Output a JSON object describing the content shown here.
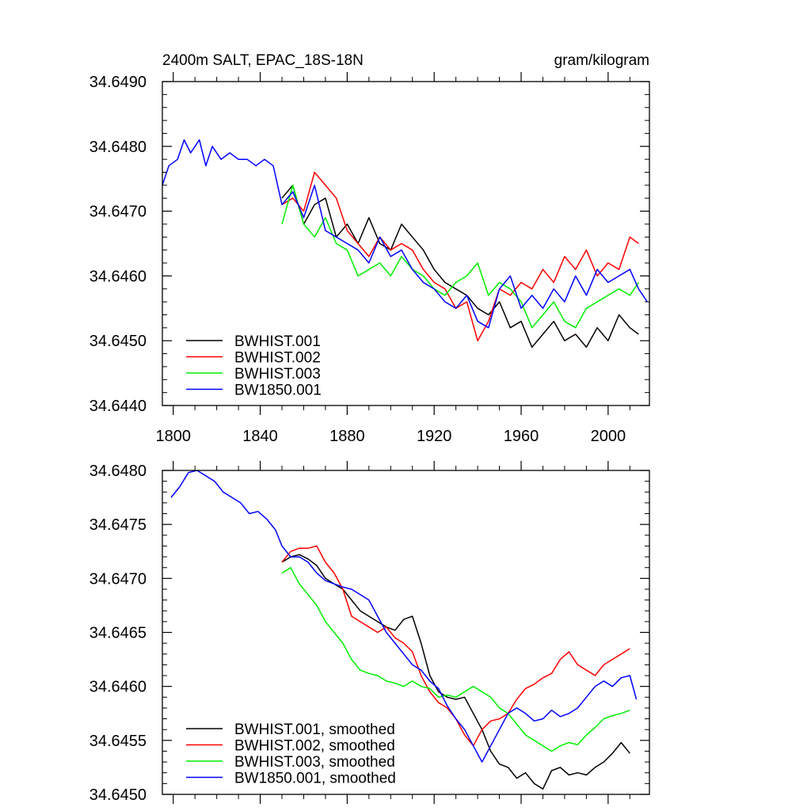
{
  "chart_data": [
    {
      "type": "line",
      "title": "2400m SALT, EPAC_18S-18N",
      "units": "gram/kilogram",
      "xlabel": "",
      "ylabel": "",
      "xlim": [
        1795,
        2019
      ],
      "ylim": [
        34.644,
        34.649
      ],
      "x_ticks": [
        1800,
        1840,
        1880,
        1920,
        1960,
        2000
      ],
      "y_ticks": [
        34.644,
        34.645,
        34.646,
        34.647,
        34.648,
        34.649
      ],
      "y_tick_labels": [
        "34.6440",
        "34.6450",
        "34.6460",
        "34.6470",
        "34.6480",
        "34.6490"
      ],
      "legend_position": "bottom-left",
      "series": [
        {
          "name": "BWHIST.001",
          "color": "#000000",
          "x": [
            1850,
            1855,
            1860,
            1865,
            1870,
            1875,
            1880,
            1885,
            1890,
            1895,
            1900,
            1905,
            1910,
            1915,
            1920,
            1925,
            1930,
            1935,
            1940,
            1945,
            1950,
            1955,
            1960,
            1965,
            1970,
            1975,
            1980,
            1985,
            1990,
            1995,
            2000,
            2005,
            2010,
            2014
          ],
          "y": [
            34.6472,
            34.6474,
            34.6468,
            34.6471,
            34.6472,
            34.6466,
            34.6468,
            34.6465,
            34.6469,
            34.6465,
            34.6464,
            34.6468,
            34.6466,
            34.6464,
            34.6461,
            34.6459,
            34.6458,
            34.6457,
            34.6455,
            34.6454,
            34.6456,
            34.6452,
            34.6453,
            34.6449,
            34.6451,
            34.6453,
            34.645,
            34.6451,
            34.6449,
            34.6452,
            34.645,
            34.6454,
            34.6452,
            34.6451
          ]
        },
        {
          "name": "BWHIST.002",
          "color": "#ff0000",
          "x": [
            1850,
            1855,
            1860,
            1865,
            1870,
            1875,
            1880,
            1885,
            1890,
            1895,
            1900,
            1905,
            1910,
            1915,
            1920,
            1925,
            1930,
            1935,
            1940,
            1945,
            1950,
            1955,
            1960,
            1965,
            1970,
            1975,
            1980,
            1985,
            1990,
            1995,
            2000,
            2005,
            2010,
            2014
          ],
          "y": [
            34.6471,
            34.6472,
            34.647,
            34.6476,
            34.6474,
            34.6472,
            34.6467,
            34.6465,
            34.6463,
            34.6466,
            34.6464,
            34.6465,
            34.6464,
            34.6461,
            34.6459,
            34.6458,
            34.6455,
            34.6456,
            34.645,
            34.6453,
            34.6458,
            34.6457,
            34.6459,
            34.6458,
            34.6461,
            34.6459,
            34.6463,
            34.6461,
            34.6464,
            34.646,
            34.6462,
            34.6461,
            34.6466,
            34.6465
          ]
        },
        {
          "name": "BWHIST.003",
          "color": "#00ee00",
          "x": [
            1850,
            1855,
            1860,
            1865,
            1870,
            1875,
            1880,
            1885,
            1890,
            1895,
            1900,
            1905,
            1910,
            1915,
            1920,
            1925,
            1930,
            1935,
            1940,
            1945,
            1950,
            1955,
            1960,
            1965,
            1970,
            1975,
            1980,
            1985,
            1990,
            1995,
            2000,
            2005,
            2010,
            2014
          ],
          "y": [
            34.6468,
            34.6474,
            34.6468,
            34.6466,
            34.6469,
            34.6465,
            34.6464,
            34.646,
            34.6461,
            34.6462,
            34.646,
            34.6463,
            34.6461,
            34.646,
            34.6458,
            34.6457,
            34.6459,
            34.646,
            34.6462,
            34.6457,
            34.6459,
            34.6458,
            34.6456,
            34.6452,
            34.6454,
            34.6456,
            34.6453,
            34.6452,
            34.6455,
            34.6456,
            34.6457,
            34.6458,
            34.6457,
            34.6459
          ]
        },
        {
          "name": "BW1850.001",
          "color": "#0000ff",
          "x": [
            1795,
            1798,
            1802,
            1805,
            1808,
            1812,
            1815,
            1818,
            1822,
            1826,
            1830,
            1834,
            1838,
            1842,
            1846,
            1850,
            1855,
            1860,
            1865,
            1870,
            1875,
            1880,
            1885,
            1890,
            1895,
            1900,
            1905,
            1910,
            1915,
            1920,
            1925,
            1930,
            1935,
            1940,
            1945,
            1950,
            1955,
            1960,
            1965,
            1970,
            1975,
            1980,
            1985,
            1990,
            1995,
            2000,
            2005,
            2010,
            2014,
            2018
          ],
          "y": [
            34.6474,
            34.6477,
            34.6478,
            34.6481,
            34.6479,
            34.6481,
            34.6477,
            34.648,
            34.6478,
            34.6479,
            34.6478,
            34.6478,
            34.6477,
            34.6478,
            34.6477,
            34.6471,
            34.6473,
            34.6469,
            34.6474,
            34.6467,
            34.6466,
            34.6465,
            34.6464,
            34.6462,
            34.6466,
            34.6463,
            34.6464,
            34.6461,
            34.6459,
            34.6458,
            34.6456,
            34.6455,
            34.6457,
            34.6453,
            34.6452,
            34.6458,
            34.646,
            34.6455,
            34.6457,
            34.6455,
            34.6458,
            34.6456,
            34.646,
            34.6457,
            34.6461,
            34.6459,
            34.646,
            34.6461,
            34.6458,
            34.6456
          ]
        }
      ]
    },
    {
      "type": "line",
      "title": "",
      "xlabel": "",
      "ylabel": "",
      "xlim": [
        1795,
        2019
      ],
      "ylim": [
        34.645,
        34.648
      ],
      "y_ticks": [
        34.645,
        34.6455,
        34.646,
        34.6465,
        34.647,
        34.6475,
        34.648
      ],
      "y_tick_labels": [
        "34.6450",
        "34.6455",
        "34.6460",
        "34.6465",
        "34.6470",
        "34.6475",
        "34.6480"
      ],
      "legend_position": "bottom-left",
      "series": [
        {
          "name": "BWHIST.001, smoothed",
          "color": "#000000",
          "x": [
            1850,
            1854,
            1858,
            1862,
            1866,
            1870,
            1874,
            1878,
            1882,
            1886,
            1890,
            1894,
            1898,
            1902,
            1906,
            1910,
            1914,
            1918,
            1922,
            1926,
            1930,
            1934,
            1938,
            1942,
            1946,
            1950,
            1954,
            1958,
            1962,
            1966,
            1970,
            1974,
            1978,
            1982,
            1986,
            1990,
            1994,
            1998,
            2002,
            2006,
            2010
          ],
          "y": [
            34.64715,
            34.6472,
            34.64722,
            34.64718,
            34.64712,
            34.647,
            34.64695,
            34.6469,
            34.6468,
            34.6467,
            34.64665,
            34.6466,
            34.64655,
            34.64652,
            34.64662,
            34.64665,
            34.6464,
            34.6461,
            34.64595,
            34.6459,
            34.64588,
            34.6459,
            34.64575,
            34.6456,
            34.6454,
            34.64528,
            34.64525,
            34.64515,
            34.6452,
            34.6451,
            34.64505,
            34.64522,
            34.64525,
            34.64518,
            34.6452,
            34.64518,
            34.64525,
            34.6453,
            34.64538,
            34.64548,
            34.64538
          ]
        },
        {
          "name": "BWHIST.002, smoothed",
          "color": "#ff0000",
          "x": [
            1850,
            1854,
            1858,
            1862,
            1866,
            1870,
            1874,
            1878,
            1882,
            1886,
            1890,
            1894,
            1898,
            1902,
            1906,
            1910,
            1914,
            1918,
            1922,
            1926,
            1930,
            1934,
            1938,
            1942,
            1946,
            1950,
            1954,
            1958,
            1962,
            1966,
            1970,
            1974,
            1978,
            1982,
            1986,
            1990,
            1994,
            1998,
            2002,
            2006,
            2010
          ],
          "y": [
            34.64715,
            34.64725,
            34.64728,
            34.64728,
            34.6473,
            34.64715,
            34.64705,
            34.6469,
            34.64665,
            34.6466,
            34.64655,
            34.6465,
            34.64655,
            34.64645,
            34.6464,
            34.64632,
            34.6461,
            34.64595,
            34.64585,
            34.6458,
            34.6457,
            34.64555,
            34.64545,
            34.6456,
            34.64568,
            34.6457,
            34.64575,
            34.64588,
            34.64598,
            34.64602,
            34.64608,
            34.64612,
            34.64625,
            34.64632,
            34.6462,
            34.64615,
            34.6461,
            34.6462,
            34.64625,
            34.6463,
            34.64635
          ]
        },
        {
          "name": "BWHIST.003, smoothed",
          "color": "#00ee00",
          "x": [
            1850,
            1854,
            1858,
            1862,
            1866,
            1870,
            1874,
            1878,
            1882,
            1886,
            1890,
            1894,
            1898,
            1902,
            1906,
            1910,
            1914,
            1918,
            1922,
            1926,
            1930,
            1934,
            1938,
            1942,
            1946,
            1950,
            1954,
            1958,
            1962,
            1966,
            1970,
            1974,
            1978,
            1982,
            1986,
            1990,
            1994,
            1998,
            2002,
            2006,
            2010
          ],
          "y": [
            34.64705,
            34.6471,
            34.64695,
            34.64685,
            34.64675,
            34.6466,
            34.6465,
            34.6464,
            34.64625,
            34.64615,
            34.64612,
            34.6461,
            34.64605,
            34.64603,
            34.646,
            34.64605,
            34.646,
            34.64598,
            34.6459,
            34.64592,
            34.6459,
            34.64595,
            34.646,
            34.64595,
            34.6459,
            34.6458,
            34.64575,
            34.64565,
            34.64555,
            34.6455,
            34.64545,
            34.6454,
            34.64545,
            34.64548,
            34.64546,
            34.64555,
            34.64562,
            34.6457,
            34.64573,
            34.64575,
            34.64578
          ]
        },
        {
          "name": "BW1850.001, smoothed",
          "color": "#0000ff",
          "x": [
            1799,
            1803,
            1807,
            1811,
            1815,
            1819,
            1823,
            1827,
            1831,
            1835,
            1839,
            1843,
            1847,
            1850,
            1854,
            1858,
            1862,
            1866,
            1870,
            1874,
            1878,
            1882,
            1886,
            1890,
            1894,
            1898,
            1902,
            1906,
            1910,
            1914,
            1918,
            1922,
            1926,
            1930,
            1934,
            1938,
            1942,
            1946,
            1950,
            1954,
            1958,
            1962,
            1966,
            1970,
            1974,
            1978,
            1982,
            1986,
            1990,
            1994,
            1998,
            2002,
            2006,
            2010,
            2013
          ],
          "y": [
            34.64775,
            34.64785,
            34.64798,
            34.648,
            34.64795,
            34.6479,
            34.6478,
            34.64775,
            34.6477,
            34.6476,
            34.64762,
            34.64755,
            34.64745,
            34.6473,
            34.6472,
            34.6472,
            34.64715,
            34.64705,
            34.64698,
            34.64695,
            34.64692,
            34.6469,
            34.64685,
            34.6468,
            34.64665,
            34.6465,
            34.6464,
            34.6463,
            34.6462,
            34.64615,
            34.64605,
            34.64598,
            34.64582,
            34.6457,
            34.6456,
            34.64545,
            34.6453,
            34.64545,
            34.6456,
            34.64575,
            34.6458,
            34.64575,
            34.64568,
            34.6457,
            34.64578,
            34.64572,
            34.64575,
            34.6458,
            34.6459,
            34.646,
            34.64605,
            34.646,
            34.64608,
            34.6461,
            34.64588
          ]
        }
      ]
    }
  ]
}
